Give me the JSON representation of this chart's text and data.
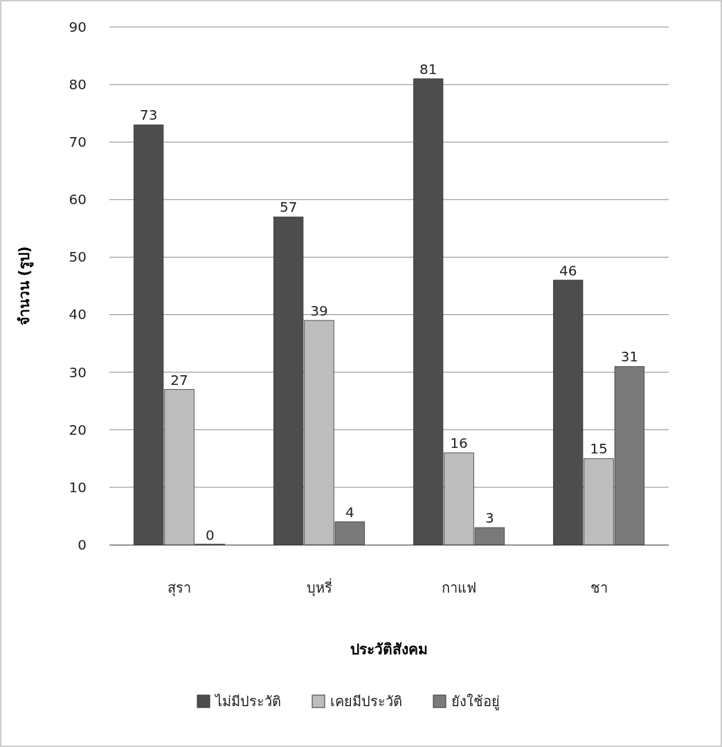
{
  "chart_data": {
    "type": "bar",
    "xlabel": "ประวัติสังคม",
    "ylabel": "จำนวน (รูป)",
    "categories": [
      "สุรา",
      "บุหรี่",
      "กาแฟ",
      "ชา"
    ],
    "series": [
      {
        "name": "ไม่มีประวัติ",
        "color": "#4d4d4d",
        "values": [
          73,
          57,
          81,
          46
        ]
      },
      {
        "name": "เคยมีประวัติ",
        "color": "#bdbdbd",
        "values": [
          27,
          39,
          16,
          15
        ]
      },
      {
        "name": "ยังใช้อยู่",
        "color": "#7a7a7a",
        "values": [
          0,
          4,
          3,
          31
        ]
      }
    ],
    "ylim": [
      0,
      90
    ],
    "yticks": [
      0,
      10,
      20,
      30,
      40,
      50,
      60,
      70,
      80,
      90
    ],
    "grid": "y",
    "legend": "bottom",
    "data_labels": true
  }
}
